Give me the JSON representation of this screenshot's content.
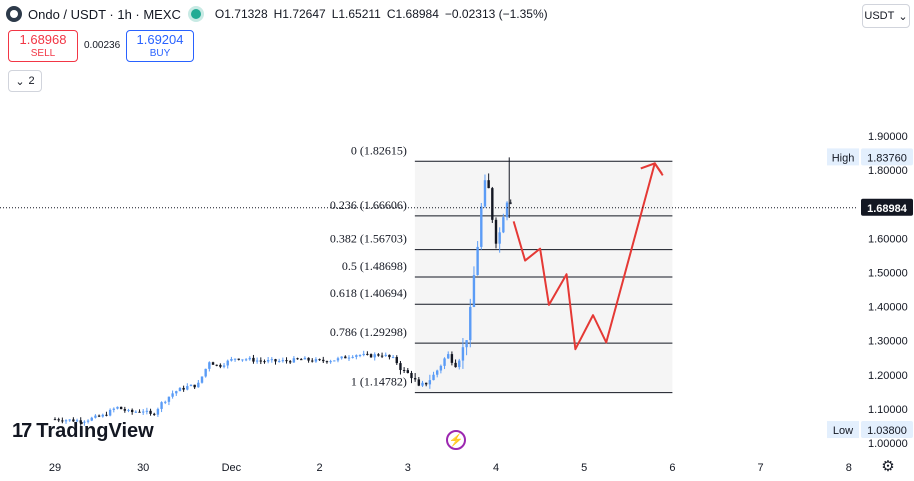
{
  "header": {
    "symbol": "Ondo / USDT · 1h · MEXC",
    "open": "O1.71328",
    "high": "H1.72647",
    "low": "L1.65211",
    "close": "C1.68984",
    "change": "−0.02313 (−1.35%)"
  },
  "currency_button": {
    "label": "USDT",
    "icon": "chevron-down-icon"
  },
  "trade": {
    "sell_price": "1.68968",
    "sell_label": "SELL",
    "spread": "0.00236",
    "buy_price": "1.69204",
    "buy_label": "BUY"
  },
  "collapse_button": {
    "count": "2",
    "icon": "chevron-down-icon"
  },
  "branding": {
    "logo_text": "TradingView"
  },
  "colors": {
    "up": "#5b9cf6",
    "down": "#131722",
    "forecast": "#e53935",
    "fib_line": "#131722",
    "fib_fill": "#f5f5f5",
    "badge_dark": "#131722",
    "badge_light": "#e3effd"
  },
  "chart_data": {
    "type": "candlestick",
    "symbol": "Ondo / USDT",
    "interval": "1h",
    "x_tick_labels": [
      "29",
      "30",
      "Dec",
      "2",
      "3",
      "4",
      "5",
      "6",
      "7",
      "8"
    ],
    "y_ticks": [
      1.0,
      1.1,
      1.2,
      1.3,
      1.4,
      1.5,
      1.6,
      1.7,
      1.8,
      1.9
    ],
    "y_tick_labels": [
      "1.00000",
      "1.10000",
      "1.20000",
      "1.30000",
      "1.40000",
      "1.50000",
      "1.60000",
      "1.70000",
      "1.80000",
      "1.90000"
    ],
    "ylim": [
      0.99,
      1.935
    ],
    "xlim": [
      0,
      10.05
    ],
    "price_badges": [
      {
        "label": "High",
        "value": "1.83760",
        "y": 1.8376,
        "style": "light"
      },
      {
        "label": "",
        "value": "1.68984",
        "y": 1.68984,
        "style": "dark"
      },
      {
        "label": "Low",
        "value": "1.03800",
        "y": 1.038,
        "style": "light"
      }
    ],
    "last_price": 1.68984,
    "fib_retracement": {
      "x_start": 4.08,
      "x_end": 7.0,
      "levels": [
        {
          "ratio": "0",
          "price": 1.82615,
          "label": "0 (1.82615)"
        },
        {
          "ratio": "0.236",
          "price": 1.66606,
          "label": "0.236 (1.66606)"
        },
        {
          "ratio": "0.382",
          "price": 1.56703,
          "label": "0.382 (1.56703)"
        },
        {
          "ratio": "0.5",
          "price": 1.48698,
          "label": "0.5 (1.48698)"
        },
        {
          "ratio": "0.618",
          "price": 1.40694,
          "label": "0.618 (1.40694)"
        },
        {
          "ratio": "0.786",
          "price": 1.29298,
          "label": "0.786 (1.29298)"
        },
        {
          "ratio": "1",
          "price": 1.14782,
          "label": "1 (1.14782)"
        }
      ]
    },
    "forecast_path": [
      [
        5.2,
        1.65
      ],
      [
        5.33,
        1.535
      ],
      [
        5.5,
        1.57
      ],
      [
        5.6,
        1.405
      ],
      [
        5.8,
        1.495
      ],
      [
        5.9,
        1.275
      ],
      [
        6.1,
        1.375
      ],
      [
        6.25,
        1.295
      ],
      [
        6.8,
        1.82
      ],
      [
        6.88,
        1.79
      ]
    ],
    "forecast_arrow_tip": [
      6.8,
      1.82
    ],
    "candle_anchors": [
      [
        0.0,
        1.07
      ],
      [
        0.3,
        1.065
      ],
      [
        0.55,
        1.08
      ],
      [
        0.7,
        1.105
      ],
      [
        0.85,
        1.09
      ],
      [
        1.0,
        1.095
      ],
      [
        1.1,
        1.08
      ],
      [
        1.2,
        1.115
      ],
      [
        1.35,
        1.15
      ],
      [
        1.5,
        1.165
      ],
      [
        1.62,
        1.17
      ],
      [
        1.75,
        1.24
      ],
      [
        1.85,
        1.225
      ],
      [
        2.05,
        1.25
      ],
      [
        2.2,
        1.245
      ],
      [
        2.35,
        1.24
      ],
      [
        2.6,
        1.24
      ],
      [
        2.8,
        1.245
      ],
      [
        3.0,
        1.24
      ],
      [
        3.2,
        1.245
      ],
      [
        3.4,
        1.26
      ],
      [
        3.55,
        1.255
      ],
      [
        3.7,
        1.26
      ],
      [
        3.85,
        1.245
      ],
      [
        3.95,
        1.21
      ],
      [
        4.06,
        1.195
      ],
      [
        4.12,
        1.16
      ],
      [
        4.2,
        1.175
      ],
      [
        4.3,
        1.2
      ],
      [
        4.45,
        1.26
      ],
      [
        4.55,
        1.23
      ],
      [
        4.65,
        1.29
      ],
      [
        4.7,
        1.36
      ],
      [
        4.75,
        1.49
      ],
      [
        4.8,
        1.6
      ],
      [
        4.86,
        1.76
      ],
      [
        4.92,
        1.74
      ],
      [
        4.97,
        1.64
      ],
      [
        5.0,
        1.6
      ],
      [
        5.05,
        1.62
      ],
      [
        5.1,
        1.705
      ],
      [
        5.15,
        1.73
      ],
      [
        5.2,
        1.69
      ]
    ],
    "grid": false,
    "legend": "none"
  }
}
